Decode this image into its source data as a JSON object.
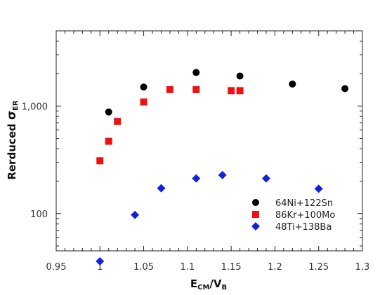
{
  "chart_data": {
    "type": "scatter",
    "title": "",
    "xlabel": {
      "main": "E",
      "sub1": "CM",
      "sep": "/V",
      "sub2": "B"
    },
    "ylabel": {
      "main": "Rerduced ",
      "sigma": "σ",
      "sub": "ER"
    },
    "xlim": [
      0.95,
      1.3
    ],
    "ylim": [
      45,
      5000
    ],
    "yscale": "log",
    "x_ticks": [
      {
        "value": 0.95,
        "label": "0.95"
      },
      {
        "value": 1.0,
        "label": "1"
      },
      {
        "value": 1.05,
        "label": "1.05"
      },
      {
        "value": 1.1,
        "label": "1.1"
      },
      {
        "value": 1.15,
        "label": "1.15"
      },
      {
        "value": 1.2,
        "label": "1.2"
      },
      {
        "value": 1.25,
        "label": "1.25"
      },
      {
        "value": 1.3,
        "label": "1.3"
      }
    ],
    "y_ticks": [
      {
        "value": 100,
        "label": "100"
      },
      {
        "value": 1000,
        "label": "1,000"
      }
    ],
    "legend_position": "bottom-right",
    "grid": false,
    "series": [
      {
        "name": "64Ni+122Sn",
        "marker": "circle",
        "color": "#000000",
        "points": [
          {
            "x": 1.01,
            "y": 880
          },
          {
            "x": 1.05,
            "y": 1500
          },
          {
            "x": 1.11,
            "y": 2050
          },
          {
            "x": 1.16,
            "y": 1900
          },
          {
            "x": 1.22,
            "y": 1600
          },
          {
            "x": 1.28,
            "y": 1450
          }
        ]
      },
      {
        "name": "86Kr+100Mo",
        "marker": "square",
        "color": "#ee1111",
        "points": [
          {
            "x": 1.0,
            "y": 310
          },
          {
            "x": 1.01,
            "y": 470
          },
          {
            "x": 1.02,
            "y": 720
          },
          {
            "x": 1.05,
            "y": 1090
          },
          {
            "x": 1.08,
            "y": 1420
          },
          {
            "x": 1.11,
            "y": 1420
          },
          {
            "x": 1.15,
            "y": 1390
          },
          {
            "x": 1.16,
            "y": 1390
          }
        ]
      },
      {
        "name": "48Ti+138Ba",
        "marker": "diamond",
        "color": "#1122dd",
        "points": [
          {
            "x": 1.0,
            "y": 36
          },
          {
            "x": 1.04,
            "y": 97
          },
          {
            "x": 1.07,
            "y": 172
          },
          {
            "x": 1.11,
            "y": 212
          },
          {
            "x": 1.14,
            "y": 228
          },
          {
            "x": 1.19,
            "y": 212
          },
          {
            "x": 1.25,
            "y": 170
          }
        ]
      }
    ]
  }
}
